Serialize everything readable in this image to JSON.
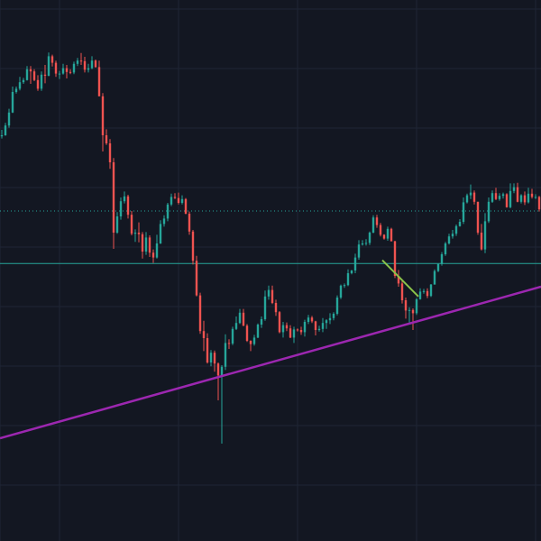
{
  "colors": {
    "background": "#131722",
    "grid": "#1f2535",
    "up": "#26a69a",
    "down": "#ef5350",
    "trendline": "#9c27b0",
    "support_line": "#26a69a",
    "resistance_dotted": "#26a69a",
    "annotation_segment": "#8bc34a"
  },
  "chart_data": {
    "type": "candlestick",
    "ylim": [
      0,
      100
    ],
    "xlim": [
      0,
      150
    ],
    "grid": true,
    "title": "",
    "xlabel": "",
    "ylabel": "",
    "x": [
      0,
      1,
      2,
      3,
      4,
      5,
      6,
      7,
      8,
      9,
      10,
      11,
      12,
      13,
      14,
      15,
      16,
      17,
      18,
      19,
      20,
      21,
      22,
      23,
      24,
      25,
      26,
      27,
      28,
      29,
      30,
      31,
      32,
      33,
      34,
      35,
      36,
      37,
      38,
      39,
      40,
      41,
      42,
      43,
      44,
      45,
      46,
      47,
      48,
      49,
      50,
      51,
      52,
      53,
      54,
      55,
      56,
      57,
      58,
      59,
      60,
      61,
      62,
      63,
      64,
      65,
      66,
      67,
      68,
      69,
      70,
      71,
      72,
      73,
      74,
      75,
      76,
      77,
      78,
      79,
      80,
      81,
      82,
      83,
      84,
      85,
      86,
      87,
      88,
      89,
      90,
      91,
      92,
      93,
      94,
      95,
      96,
      97,
      98,
      99,
      100,
      101,
      102,
      103,
      104,
      105,
      106,
      107,
      108,
      109,
      110,
      111,
      112,
      113,
      114,
      115,
      116,
      117,
      118,
      119,
      120,
      121,
      122,
      123,
      124,
      125,
      126,
      127,
      128,
      129,
      130,
      131,
      132,
      133,
      134,
      135,
      136,
      137,
      138,
      139,
      140,
      141,
      142,
      143,
      144,
      145,
      146,
      147,
      148,
      149
    ],
    "close": [
      75.0,
      76.8,
      79.2,
      83.0,
      83.6,
      84.8,
      85.2,
      87.2,
      86.8,
      85.2,
      83.6,
      86.2,
      86.0,
      89.6,
      88.4,
      86.4,
      86.4,
      87.4,
      86.7,
      86.6,
      88.2,
      88.8,
      88.7,
      87.1,
      87.4,
      88.8,
      87.6,
      82.2,
      75.0,
      73.5,
      70.0,
      57.0,
      60.0,
      62.8,
      63.7,
      60.3,
      56.8,
      57.0,
      56.7,
      53.5,
      56.1,
      53.3,
      52.4,
      55.0,
      58.6,
      59.6,
      62.2,
      63.6,
      63.4,
      62.5,
      63.2,
      60.5,
      57.2,
      51.8,
      45.4,
      38.8,
      37.5,
      33.0,
      34.8,
      32.8,
      30.6,
      32.2,
      36.6,
      36.5,
      39.2,
      40.3,
      42.2,
      39.8,
      37.0,
      36.4,
      37.6,
      40.0,
      41.0,
      45.2,
      46.4,
      44.0,
      42.3,
      38.6,
      39.9,
      39.3,
      37.6,
      39.1,
      39.0,
      38.6,
      40.5,
      41.3,
      40.6,
      39.0,
      39.2,
      40.3,
      40.8,
      41.2,
      42.0,
      45.0,
      47.2,
      47.3,
      49.5,
      50.0,
      52.4,
      54.8,
      55.0,
      55.1,
      57.0,
      59.8,
      58.4,
      56.6,
      55.9,
      57.7,
      55.4,
      49.0,
      47.6,
      44.5,
      42.6,
      42.7,
      42.1,
      44.7,
      46.1,
      46.2,
      45.3,
      47.4,
      49.9,
      51.2,
      53.0,
      55.0,
      56.3,
      56.8,
      58.2,
      59.0,
      62.6,
      63.9,
      64.4,
      62.7,
      57.0,
      53.9,
      59.1,
      62.7,
      64.3,
      63.2,
      63.8,
      64.1,
      61.7,
      64.7,
      65.4,
      62.7,
      63.9,
      62.6,
      64.2,
      63.6,
      63.6,
      61.3
    ],
    "open": [
      74.8,
      75.0,
      76.8,
      79.2,
      83.0,
      83.6,
      84.8,
      85.2,
      87.2,
      86.8,
      85.2,
      83.6,
      86.2,
      86.0,
      89.6,
      88.4,
      86.4,
      86.4,
      87.4,
      86.7,
      86.6,
      88.2,
      88.8,
      88.7,
      87.1,
      87.4,
      88.8,
      87.6,
      82.2,
      75.0,
      73.5,
      70.0,
      57.0,
      60.0,
      62.8,
      63.7,
      60.3,
      56.8,
      57.0,
      56.7,
      53.5,
      56.1,
      53.3,
      52.4,
      55.0,
      58.6,
      59.6,
      62.2,
      63.6,
      63.4,
      62.5,
      63.2,
      60.5,
      57.2,
      51.8,
      45.4,
      38.8,
      37.5,
      33.0,
      34.8,
      32.8,
      30.6,
      32.2,
      36.6,
      36.5,
      39.2,
      40.3,
      42.2,
      39.8,
      37.0,
      36.4,
      37.6,
      40.0,
      41.0,
      45.2,
      46.4,
      44.0,
      42.3,
      38.6,
      39.9,
      39.3,
      37.6,
      39.1,
      39.0,
      38.6,
      40.5,
      41.3,
      40.6,
      39.0,
      39.2,
      40.3,
      40.8,
      41.2,
      42.0,
      45.0,
      47.2,
      47.3,
      49.5,
      50.0,
      52.4,
      54.8,
      55.0,
      55.1,
      57.0,
      59.8,
      58.4,
      56.6,
      55.9,
      57.7,
      55.4,
      49.0,
      47.6,
      44.5,
      42.6,
      42.7,
      42.1,
      44.7,
      46.1,
      46.2,
      45.3,
      47.4,
      49.9,
      51.2,
      53.0,
      55.0,
      56.3,
      56.8,
      58.2,
      59.0,
      62.6,
      63.9,
      64.4,
      62.7,
      57.0,
      53.9,
      59.1,
      62.7,
      64.3,
      63.2,
      63.8,
      64.1,
      61.7,
      64.7,
      65.4,
      62.7,
      63.9,
      62.6,
      64.2,
      63.6,
      63.6
    ],
    "high": [
      76.0,
      77.3,
      79.9,
      84.0,
      84.0,
      85.8,
      85.6,
      87.8,
      87.8,
      87.2,
      86.1,
      86.8,
      88.0,
      90.3,
      89.9,
      88.8,
      86.9,
      88.2,
      88.0,
      87.2,
      88.6,
      89.3,
      90.2,
      89.5,
      88.2,
      89.6,
      89.0,
      88.8,
      82.8,
      76.1,
      74.3,
      70.8,
      60.8,
      63.5,
      64.6,
      64.0,
      61.0,
      57.6,
      58.9,
      57.1,
      57.1,
      56.5,
      53.9,
      56.6,
      59.3,
      60.2,
      62.5,
      64.2,
      64.3,
      64.4,
      63.9,
      63.4,
      60.9,
      57.5,
      52.7,
      45.9,
      40.7,
      38.4,
      35.3,
      35.2,
      33.0,
      32.5,
      38.2,
      37.3,
      39.6,
      41.5,
      42.9,
      42.9,
      40.1,
      37.1,
      38.1,
      40.2,
      41.5,
      46.3,
      47.2,
      47.2,
      44.6,
      42.5,
      40.5,
      40.4,
      39.9,
      39.6,
      39.3,
      39.6,
      40.9,
      41.8,
      41.6,
      40.7,
      39.8,
      41.2,
      41.0,
      42.1,
      42.3,
      45.4,
      47.4,
      47.6,
      50.2,
      50.1,
      53.1,
      55.6,
      55.6,
      55.8,
      57.2,
      60.2,
      60.3,
      58.8,
      56.7,
      58.1,
      57.9,
      55.5,
      50.1,
      48.4,
      45.0,
      43.2,
      43.0,
      44.9,
      46.7,
      46.6,
      46.7,
      47.5,
      50.2,
      51.3,
      53.4,
      55.3,
      56.8,
      57.5,
      58.5,
      59.5,
      63.5,
      64.2,
      65.9,
      64.8,
      62.7,
      58.6,
      60.6,
      63.5,
      64.8,
      65.3,
      64.3,
      64.4,
      64.3,
      66.1,
      66.1,
      66.2,
      64.1,
      64.6,
      65.3,
      65.1,
      64.1,
      63.8
    ],
    "low": [
      74.4,
      74.9,
      76.4,
      79.1,
      82.7,
      83.3,
      84.5,
      85.1,
      84.5,
      85.0,
      83.2,
      83.2,
      84.6,
      85.9,
      87.7,
      85.8,
      85.4,
      86.2,
      85.5,
      86.3,
      86.3,
      87.8,
      88.0,
      86.6,
      86.6,
      87.2,
      87.5,
      82.2,
      72.0,
      73.2,
      68.8,
      54.0,
      56.8,
      59.4,
      62.4,
      59.6,
      56.5,
      55.3,
      55.2,
      52.2,
      52.9,
      52.5,
      51.4,
      52.2,
      54.9,
      58.1,
      59.1,
      61.9,
      63.2,
      62.2,
      62.2,
      60.4,
      56.6,
      51.1,
      45.2,
      38.3,
      35.1,
      32.8,
      32.3,
      31.3,
      26.0,
      18.0,
      31.6,
      35.5,
      36.2,
      39.0,
      40.1,
      39.7,
      36.8,
      35.1,
      36.1,
      37.5,
      39.4,
      40.7,
      44.6,
      43.8,
      41.6,
      38.4,
      37.6,
      38.8,
      37.5,
      36.6,
      38.7,
      38.1,
      37.8,
      40.1,
      40.3,
      38.0,
      38.7,
      38.6,
      39.2,
      40.1,
      40.8,
      41.7,
      44.7,
      46.8,
      47.1,
      49.3,
      49.5,
      52.0,
      54.6,
      54.6,
      54.7,
      56.9,
      57.9,
      56.3,
      55.7,
      55.5,
      55.4,
      48.6,
      47.0,
      43.9,
      41.1,
      40.4,
      39.0,
      41.8,
      44.6,
      45.7,
      44.9,
      45.1,
      47.4,
      49.7,
      50.9,
      52.7,
      54.8,
      55.9,
      56.4,
      58.1,
      58.6,
      62.4,
      63.2,
      62.2,
      56.6,
      53.7,
      53.2,
      58.8,
      62.5,
      63.0,
      62.9,
      63.3,
      61.6,
      61.5,
      64.3,
      62.6,
      62.4,
      62.1,
      62.4,
      63.3,
      63.2,
      60.9
    ],
    "overlays": {
      "trendline": {
        "from": [
          0,
          19.0
        ],
        "to": [
          150,
          47.0
        ]
      },
      "support_level": 51.3,
      "resistance_level": 61.0,
      "short_segment": {
        "from": [
          106,
          51.9
        ],
        "to": [
          116,
          45.2
        ]
      }
    }
  }
}
